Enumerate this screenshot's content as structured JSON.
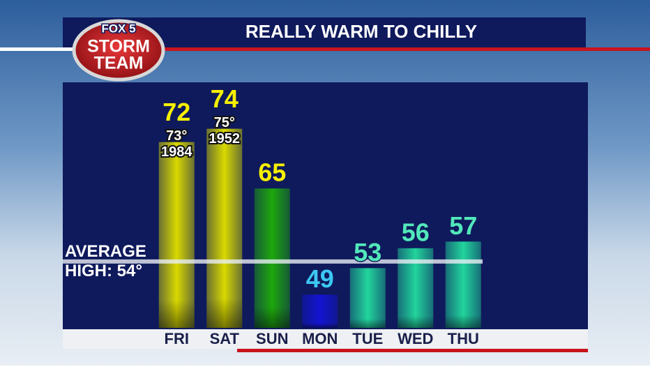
{
  "chart_data": {
    "type": "bar",
    "title": "REALLY WARM TO CHILLY",
    "branding": {
      "top": "FOX 5",
      "middle": "STORM",
      "bottom": "TEAM"
    },
    "categories": [
      "FRI",
      "SAT",
      "SUN",
      "MON",
      "TUE",
      "WED",
      "THU"
    ],
    "values": [
      72,
      74,
      65,
      49,
      53,
      56,
      57
    ],
    "colors": [
      "#d9d900",
      "#d9d900",
      "#1ea80c",
      "#1414d2",
      "#22d49c",
      "#22d49c",
      "#22d49c"
    ],
    "label_colors": [
      "#f6f000",
      "#f6f000",
      "#f6f000",
      "#3cc8f2",
      "#52e8ba",
      "#52e8ba",
      "#52e8ba"
    ],
    "record_highs": [
      "73°",
      "75°",
      null,
      null,
      null,
      null,
      null
    ],
    "record_years": [
      "1984",
      "1952",
      null,
      null,
      null,
      null,
      null
    ],
    "average": {
      "value": 54,
      "label_lines": [
        "AVERAGE",
        "HIGH: 54°"
      ]
    },
    "ylim": [
      44,
      81
    ]
  }
}
